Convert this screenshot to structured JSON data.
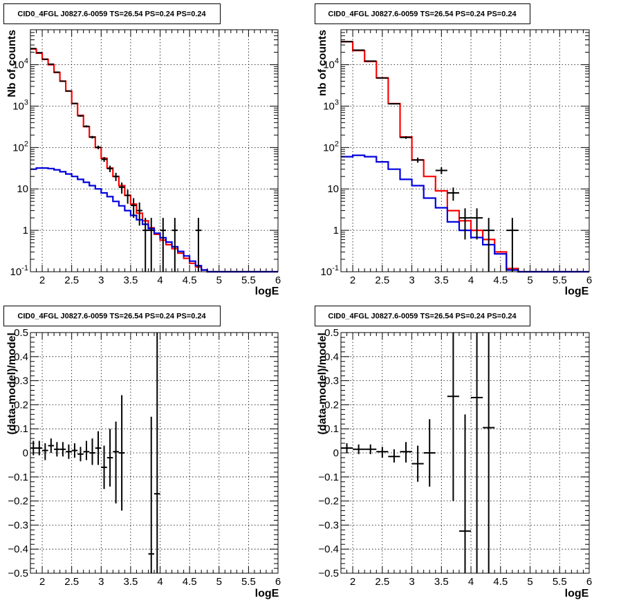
{
  "chart_data": [
    {
      "id": "top-left",
      "type": "step-histogram-with-errorbars",
      "title": "CID0_4FGL J0827.6-0059 TS=26.54 PS=0.24 PS=0.24",
      "xlabel": "logE",
      "ylabel": "Nb of counts",
      "yscale": "log",
      "xlim": [
        1.8,
        6.0
      ],
      "ylim": [
        0.1,
        70000
      ],
      "grid": true,
      "x_ticks": [
        2,
        2.5,
        3,
        3.5,
        4,
        4.5,
        5,
        5.5,
        6
      ],
      "x_tick_labels": [
        "2",
        "2.5",
        "3",
        "3.5",
        "4",
        "4.5",
        "5",
        "5.5",
        "6"
      ],
      "y_ticks": [
        0.1,
        1,
        10,
        100,
        1000,
        10000
      ],
      "y_tick_labels": [
        "10^-1",
        "1",
        "10",
        "10^2",
        "10^3",
        "10^4"
      ],
      "bin_edges": [
        1.8,
        1.9,
        2.0,
        2.1,
        2.2,
        2.3,
        2.4,
        2.5,
        2.6,
        2.7,
        2.8,
        2.9,
        3.0,
        3.1,
        3.2,
        3.3,
        3.4,
        3.5,
        3.6,
        3.7,
        3.8,
        3.9,
        4.0,
        4.1,
        4.2,
        4.3,
        4.4,
        4.5,
        4.6,
        4.7,
        4.8,
        4.9,
        5.0,
        5.1,
        5.2,
        5.3,
        5.4,
        5.5,
        5.6,
        5.7,
        5.8,
        5.9,
        6.0
      ],
      "series": [
        {
          "role": "total-model",
          "color": "#ff0000",
          "values": [
            24000,
            19000,
            13500,
            10000,
            6500,
            4000,
            2300,
            1150,
            600,
            320,
            180,
            100,
            55,
            32,
            20,
            12,
            7,
            4.3,
            2.6,
            1.7,
            1.15,
            0.8,
            0.58,
            0.45,
            0.36,
            0.28,
            0.21,
            0.16,
            0.13,
            0.11,
            0.1,
            0.1,
            0.1,
            0.1,
            0.1,
            0.1,
            0.1,
            0.1,
            0.1,
            0.1,
            0.1,
            0.1
          ]
        },
        {
          "role": "source-component",
          "color": "#0000dd",
          "values": [
            30,
            32,
            32,
            31,
            29,
            26,
            23,
            20,
            17,
            14.5,
            12,
            10,
            8,
            6.5,
            5,
            3.9,
            3,
            2.3,
            1.8,
            1.4,
            1.1,
            0.85,
            0.66,
            0.52,
            0.4,
            0.31,
            0.24,
            0.18,
            0.14,
            0.11,
            0.1,
            0.1,
            0.1,
            0.1,
            0.1,
            0.1,
            0.1,
            0.1,
            0.1,
            0.1,
            0.1,
            0.1
          ]
        }
      ],
      "points": [
        {
          "x": 1.85,
          "y": 24500,
          "xerr": 0.05,
          "ylo": 24350,
          "yhi": 24650
        },
        {
          "x": 1.95,
          "y": 19500,
          "xerr": 0.05,
          "ylo": 19360,
          "yhi": 19640
        },
        {
          "x": 2.05,
          "y": 13600,
          "xerr": 0.05,
          "ylo": 13480,
          "yhi": 13720
        },
        {
          "x": 2.15,
          "y": 10300,
          "xerr": 0.05,
          "ylo": 10200,
          "yhi": 10400
        },
        {
          "x": 2.25,
          "y": 6600,
          "xerr": 0.05,
          "ylo": 6520,
          "yhi": 6680
        },
        {
          "x": 2.35,
          "y": 4000,
          "xerr": 0.05,
          "ylo": 3940,
          "yhi": 4060
        },
        {
          "x": 2.45,
          "y": 2320,
          "xerr": 0.05,
          "ylo": 2270,
          "yhi": 2370
        },
        {
          "x": 2.55,
          "y": 1160,
          "xerr": 0.05,
          "ylo": 1126,
          "yhi": 1194
        },
        {
          "x": 2.65,
          "y": 580,
          "xerr": 0.05,
          "ylo": 556,
          "yhi": 604
        },
        {
          "x": 2.75,
          "y": 325,
          "xerr": 0.05,
          "ylo": 307,
          "yhi": 343
        },
        {
          "x": 2.85,
          "y": 178,
          "xerr": 0.05,
          "ylo": 165,
          "yhi": 191
        },
        {
          "x": 2.95,
          "y": 101,
          "xerr": 0.05,
          "ylo": 91,
          "yhi": 111
        },
        {
          "x": 3.05,
          "y": 52,
          "xerr": 0.05,
          "ylo": 45,
          "yhi": 59
        },
        {
          "x": 3.15,
          "y": 31,
          "xerr": 0.05,
          "ylo": 25.5,
          "yhi": 36.5
        },
        {
          "x": 3.25,
          "y": 20,
          "xerr": 0.05,
          "ylo": 15.5,
          "yhi": 24.5
        },
        {
          "x": 3.35,
          "y": 11,
          "xerr": 0.05,
          "ylo": 7.7,
          "yhi": 14.3
        },
        {
          "x": 3.45,
          "y": 7,
          "xerr": 0.05,
          "ylo": 4.4,
          "yhi": 9.6
        },
        {
          "x": 3.55,
          "y": 4,
          "xerr": 0.05,
          "ylo": 2.0,
          "yhi": 6.0
        },
        {
          "x": 3.65,
          "y": 3,
          "xerr": 0.05,
          "ylo": 1.3,
          "yhi": 4.7
        },
        {
          "x": 3.75,
          "y": 1,
          "xerr": 0.05,
          "ylo": 0.1,
          "yhi": 2.0
        },
        {
          "x": 3.85,
          "y": 1,
          "xerr": 0.05,
          "ylo": 0.1,
          "yhi": 2.0
        },
        {
          "x": 4.05,
          "y": 1,
          "xerr": 0.05,
          "ylo": 0.1,
          "yhi": 2.0
        },
        {
          "x": 4.25,
          "y": 1,
          "xerr": 0.05,
          "ylo": 0.1,
          "yhi": 2.0
        },
        {
          "x": 4.65,
          "y": 1,
          "xerr": 0.05,
          "ylo": 0.1,
          "yhi": 2.0
        }
      ]
    },
    {
      "id": "top-right",
      "type": "step-histogram-with-errorbars",
      "title": "CID0_4FGL J0827.6-0059 TS=26.54 PS=0.24 PS=0.24",
      "xlabel": "logE",
      "ylabel": "nb of counts",
      "yscale": "log",
      "xlim": [
        1.8,
        6.0
      ],
      "ylim": [
        0.1,
        70000
      ],
      "grid": true,
      "x_ticks": [
        2,
        2.5,
        3,
        3.5,
        4,
        4.5,
        5,
        5.5,
        6
      ],
      "x_tick_labels": [
        "2",
        "2.5",
        "3",
        "3.5",
        "4",
        "4.5",
        "5",
        "5.5",
        "6"
      ],
      "y_ticks": [
        0.1,
        1,
        10,
        100,
        1000,
        10000
      ],
      "y_tick_labels": [
        "10^-1",
        "1",
        "10",
        "10^2",
        "10^3",
        "10^4"
      ],
      "bin_edges": [
        1.8,
        2.0,
        2.2,
        2.4,
        2.6,
        2.8,
        3.0,
        3.2,
        3.4,
        3.6,
        3.8,
        4.0,
        4.2,
        4.4,
        4.6,
        4.8,
        5.0,
        5.2,
        5.4,
        5.6,
        5.8,
        6.0
      ],
      "series": [
        {
          "role": "total-model",
          "color": "#ff0000",
          "values": [
            36000,
            22000,
            12000,
            4800,
            1150,
            180,
            50,
            20,
            9,
            3,
            1.7,
            1,
            0.6,
            0.3,
            0.12,
            0.1,
            0.1,
            0.1,
            0.1,
            0.1,
            0.1
          ]
        },
        {
          "role": "source-component",
          "color": "#0000dd",
          "values": [
            60,
            65,
            60,
            45,
            30,
            17,
            12,
            6,
            3.5,
            1.6,
            1.0,
            0.67,
            0.45,
            0.27,
            0.11,
            0.1,
            0.1,
            0.1,
            0.1,
            0.1,
            0.1
          ]
        }
      ],
      "points": [
        {
          "x": 1.9,
          "y": 36000,
          "xerr": 0.1,
          "ylo": 35800,
          "yhi": 36200
        },
        {
          "x": 2.1,
          "y": 22500,
          "xerr": 0.1,
          "ylo": 22350,
          "yhi": 22650
        },
        {
          "x": 2.3,
          "y": 12200,
          "xerr": 0.1,
          "ylo": 12090,
          "yhi": 12310
        },
        {
          "x": 2.5,
          "y": 4800,
          "xerr": 0.1,
          "ylo": 4730,
          "yhi": 4870
        },
        {
          "x": 2.7,
          "y": 1140,
          "xerr": 0.1,
          "ylo": 1106,
          "yhi": 1174
        },
        {
          "x": 2.9,
          "y": 175,
          "xerr": 0.1,
          "ylo": 162,
          "yhi": 188
        },
        {
          "x": 3.1,
          "y": 50,
          "xerr": 0.1,
          "ylo": 43,
          "yhi": 57
        },
        {
          "x": 3.5,
          "y": 28,
          "xerr": 0.1,
          "ylo": 22.7,
          "yhi": 33.3
        },
        {
          "x": 3.7,
          "y": 8,
          "xerr": 0.1,
          "ylo": 5.2,
          "yhi": 10.8
        },
        {
          "x": 3.9,
          "y": 2,
          "xerr": 0.1,
          "ylo": 0.6,
          "yhi": 3.4
        },
        {
          "x": 4.1,
          "y": 2,
          "xerr": 0.1,
          "ylo": 0.6,
          "yhi": 3.4
        },
        {
          "x": 4.3,
          "y": 1,
          "xerr": 0.1,
          "ylo": 0.1,
          "yhi": 2.0
        },
        {
          "x": 4.7,
          "y": 1,
          "xerr": 0.1,
          "ylo": 0.1,
          "yhi": 2.0
        }
      ]
    },
    {
      "id": "bottom-left",
      "type": "scatter-errorbars",
      "title": "CID0_4FGL J0827.6-0059 TS=26.54 PS=0.24 PS=0.24",
      "xlabel": "logE",
      "ylabel": "(data-model)/model",
      "yscale": "linear",
      "xlim": [
        1.8,
        6.0
      ],
      "ylim": [
        -0.5,
        0.5
      ],
      "grid": true,
      "x_ticks": [
        2,
        2.5,
        3,
        3.5,
        4,
        4.5,
        5,
        5.5,
        6
      ],
      "x_tick_labels": [
        "2",
        "2.5",
        "3",
        "3.5",
        "4",
        "4.5",
        "5",
        "5.5",
        "6"
      ],
      "y_ticks": [
        -0.5,
        -0.4,
        -0.3,
        -0.2,
        -0.1,
        0,
        0.1,
        0.2,
        0.3,
        0.4,
        0.5
      ],
      "y_tick_labels": [
        "−0.5",
        "−0.4",
        "−0.3",
        "−0.2",
        "−0.1",
        "0",
        "0.1",
        "0.2",
        "0.3",
        "0.4",
        "0.5"
      ],
      "points": [
        {
          "x": 1.85,
          "y": 0.02,
          "xerr": 0.05,
          "ylo": -0.01,
          "yhi": 0.05
        },
        {
          "x": 1.95,
          "y": 0.02,
          "xerr": 0.05,
          "ylo": -0.01,
          "yhi": 0.05
        },
        {
          "x": 2.05,
          "y": 0.01,
          "xerr": 0.05,
          "ylo": -0.03,
          "yhi": 0.04
        },
        {
          "x": 2.15,
          "y": 0.03,
          "xerr": 0.05,
          "ylo": 0.0,
          "yhi": 0.06
        },
        {
          "x": 2.25,
          "y": 0.015,
          "xerr": 0.05,
          "ylo": -0.015,
          "yhi": 0.045
        },
        {
          "x": 2.35,
          "y": 0.015,
          "xerr": 0.05,
          "ylo": -0.015,
          "yhi": 0.045
        },
        {
          "x": 2.45,
          "y": 0.005,
          "xerr": 0.05,
          "ylo": -0.025,
          "yhi": 0.035
        },
        {
          "x": 2.55,
          "y": 0.01,
          "xerr": 0.05,
          "ylo": -0.02,
          "yhi": 0.04
        },
        {
          "x": 2.65,
          "y": -0.005,
          "xerr": 0.05,
          "ylo": -0.035,
          "yhi": 0.025
        },
        {
          "x": 2.75,
          "y": 0.005,
          "xerr": 0.05,
          "ylo": -0.03,
          "yhi": 0.05
        },
        {
          "x": 2.85,
          "y": 0.0,
          "xerr": 0.05,
          "ylo": -0.05,
          "yhi": 0.06
        },
        {
          "x": 2.95,
          "y": 0.02,
          "xerr": 0.05,
          "ylo": -0.05,
          "yhi": 0.09
        },
        {
          "x": 3.05,
          "y": -0.06,
          "xerr": 0.05,
          "ylo": -0.15,
          "yhi": 0.03
        },
        {
          "x": 3.15,
          "y": -0.02,
          "xerr": 0.05,
          "ylo": -0.14,
          "yhi": 0.1
        },
        {
          "x": 3.25,
          "y": 0.005,
          "xerr": 0.05,
          "ylo": -0.21,
          "yhi": 0.13
        },
        {
          "x": 3.35,
          "y": 0.0,
          "xerr": 0.05,
          "ylo": -0.24,
          "yhi": 0.24
        },
        {
          "x": 3.85,
          "y": -0.42,
          "xerr": 0.05,
          "ylo": -0.5,
          "yhi": 0.15
        },
        {
          "x": 3.95,
          "y": -0.17,
          "xerr": 0.05,
          "ylo": -0.5,
          "yhi": 0.5
        }
      ]
    },
    {
      "id": "bottom-right",
      "type": "scatter-errorbars",
      "title": "CID0_4FGL J0827.6-0059 TS=26.54 PS=0.24 PS=0.24",
      "xlabel": "logE",
      "ylabel": "(data-model)/model",
      "yscale": "linear",
      "xlim": [
        1.8,
        6.0
      ],
      "ylim": [
        -0.5,
        0.5
      ],
      "grid": true,
      "x_ticks": [
        2,
        2.5,
        3,
        3.5,
        4,
        4.5,
        5,
        5.5,
        6
      ],
      "x_tick_labels": [
        "2",
        "2.5",
        "3",
        "3.5",
        "4",
        "4.5",
        "5",
        "5.5",
        "6"
      ],
      "y_ticks": [
        -0.5,
        -0.4,
        -0.3,
        -0.2,
        -0.1,
        0,
        0.1,
        0.2,
        0.3,
        0.4,
        0.5
      ],
      "y_tick_labels": [
        "−0.5",
        "−0.4",
        "−0.3",
        "−0.2",
        "−0.1",
        "0",
        "0.1",
        "0.2",
        "0.3",
        "0.4",
        "0.5"
      ],
      "points": [
        {
          "x": 1.9,
          "y": 0.02,
          "xerr": 0.1,
          "ylo": 0.0,
          "yhi": 0.04
        },
        {
          "x": 2.1,
          "y": 0.015,
          "xerr": 0.1,
          "ylo": -0.005,
          "yhi": 0.035
        },
        {
          "x": 2.3,
          "y": 0.015,
          "xerr": 0.1,
          "ylo": -0.005,
          "yhi": 0.035
        },
        {
          "x": 2.5,
          "y": 0.005,
          "xerr": 0.1,
          "ylo": -0.02,
          "yhi": 0.025
        },
        {
          "x": 2.7,
          "y": -0.015,
          "xerr": 0.1,
          "ylo": -0.04,
          "yhi": 0.015
        },
        {
          "x": 2.9,
          "y": 0.005,
          "xerr": 0.1,
          "ylo": -0.04,
          "yhi": 0.045
        },
        {
          "x": 3.1,
          "y": -0.045,
          "xerr": 0.1,
          "ylo": -0.12,
          "yhi": 0.03
        },
        {
          "x": 3.3,
          "y": 0.0,
          "xerr": 0.1,
          "ylo": -0.14,
          "yhi": 0.14
        },
        {
          "x": 3.7,
          "y": 0.235,
          "xerr": 0.1,
          "ylo": -0.2,
          "yhi": 0.5
        },
        {
          "x": 3.9,
          "y": -0.325,
          "xerr": 0.1,
          "ylo": -0.5,
          "yhi": 0.16
        },
        {
          "x": 4.1,
          "y": 0.23,
          "xerr": 0.1,
          "ylo": -0.5,
          "yhi": 0.5
        },
        {
          "x": 4.3,
          "y": 0.105,
          "xerr": 0.1,
          "ylo": -0.5,
          "yhi": 0.5
        }
      ]
    }
  ]
}
